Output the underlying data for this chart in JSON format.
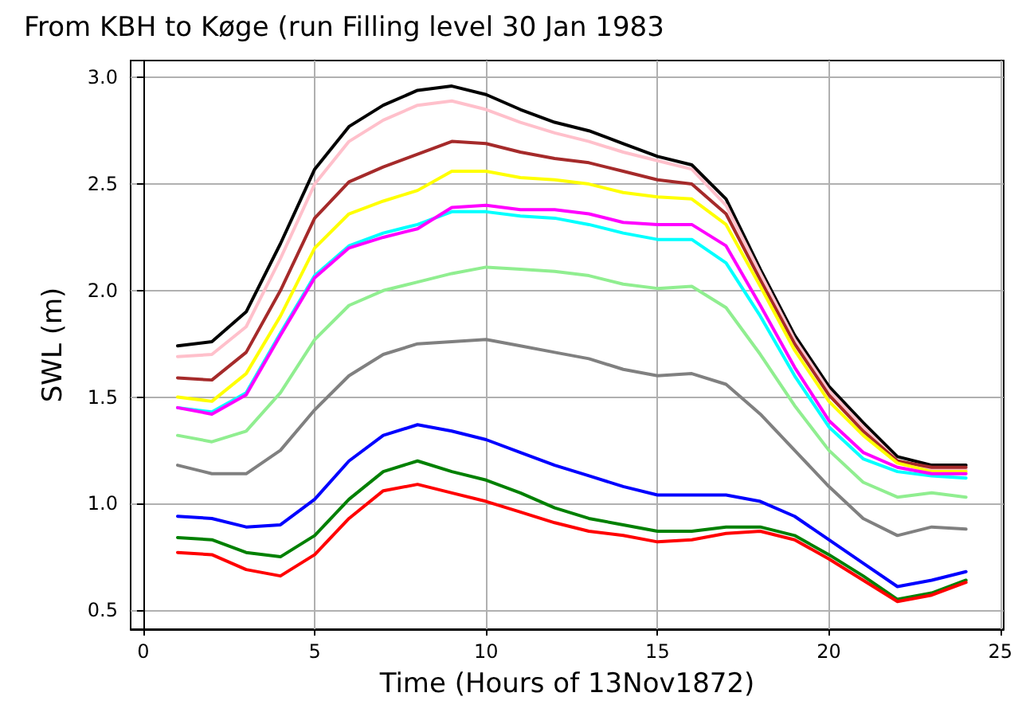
{
  "chart_data": {
    "type": "line",
    "title": "From KBH to Køge (run Filling level 30 Jan 1983",
    "xlabel": "Time (Hours of 13Nov1872)",
    "ylabel": "SWL (m)",
    "x": [
      1,
      2,
      3,
      4,
      5,
      6,
      7,
      8,
      9,
      10,
      11,
      12,
      13,
      14,
      15,
      16,
      17,
      18,
      19,
      20,
      21,
      22,
      23,
      24
    ],
    "series": [
      {
        "color": "#000000",
        "values": [
          1.74,
          1.76,
          1.9,
          2.22,
          2.57,
          2.77,
          2.87,
          2.94,
          2.96,
          2.92,
          2.85,
          2.79,
          2.75,
          2.69,
          2.63,
          2.59,
          2.43,
          2.1,
          1.79,
          1.55,
          1.38,
          1.22,
          1.18,
          1.18
        ]
      },
      {
        "color": "#ffc0cb",
        "values": [
          1.69,
          1.7,
          1.83,
          2.15,
          2.5,
          2.7,
          2.8,
          2.87,
          2.89,
          2.85,
          2.79,
          2.74,
          2.7,
          2.65,
          2.61,
          2.57,
          2.4,
          2.08,
          1.77,
          1.53,
          1.36,
          1.2,
          1.16,
          1.16
        ]
      },
      {
        "color": "#a52a2a",
        "values": [
          1.59,
          1.58,
          1.71,
          2.0,
          2.34,
          2.51,
          2.58,
          2.64,
          2.7,
          2.69,
          2.65,
          2.62,
          2.6,
          2.56,
          2.52,
          2.5,
          2.36,
          2.05,
          1.75,
          1.51,
          1.34,
          1.2,
          1.17,
          1.17
        ]
      },
      {
        "color": "#ffff00",
        "values": [
          1.5,
          1.48,
          1.61,
          1.88,
          2.2,
          2.36,
          2.42,
          2.47,
          2.56,
          2.56,
          2.53,
          2.52,
          2.5,
          2.46,
          2.44,
          2.43,
          2.31,
          2.02,
          1.72,
          1.48,
          1.32,
          1.19,
          1.15,
          1.15
        ]
      },
      {
        "color": "#00ffff",
        "values": [
          1.45,
          1.43,
          1.52,
          1.8,
          2.07,
          2.21,
          2.27,
          2.31,
          2.37,
          2.37,
          2.35,
          2.34,
          2.31,
          2.27,
          2.24,
          2.24,
          2.13,
          1.88,
          1.6,
          1.36,
          1.21,
          1.15,
          1.13,
          1.12
        ]
      },
      {
        "color": "#ff00ff",
        "values": [
          1.45,
          1.42,
          1.51,
          1.79,
          2.06,
          2.2,
          2.25,
          2.29,
          2.39,
          2.4,
          2.38,
          2.38,
          2.36,
          2.32,
          2.31,
          2.31,
          2.21,
          1.93,
          1.64,
          1.39,
          1.24,
          1.17,
          1.14,
          1.14
        ]
      },
      {
        "color": "#90ee90",
        "values": [
          1.32,
          1.29,
          1.34,
          1.52,
          1.77,
          1.93,
          2.0,
          2.04,
          2.08,
          2.11,
          2.1,
          2.09,
          2.07,
          2.03,
          2.01,
          2.02,
          1.92,
          1.7,
          1.46,
          1.25,
          1.1,
          1.03,
          1.05,
          1.03
        ]
      },
      {
        "color": "#808080",
        "values": [
          1.18,
          1.14,
          1.14,
          1.25,
          1.44,
          1.6,
          1.7,
          1.75,
          1.76,
          1.77,
          1.74,
          1.71,
          1.68,
          1.63,
          1.6,
          1.61,
          1.56,
          1.42,
          1.25,
          1.08,
          0.93,
          0.85,
          0.89,
          0.88
        ]
      },
      {
        "color": "#0000ff",
        "values": [
          0.94,
          0.93,
          0.89,
          0.9,
          1.02,
          1.2,
          1.32,
          1.37,
          1.34,
          1.3,
          1.24,
          1.18,
          1.13,
          1.08,
          1.04,
          1.04,
          1.04,
          1.01,
          0.94,
          0.83,
          0.72,
          0.61,
          0.64,
          0.68
        ]
      },
      {
        "color": "#008000",
        "values": [
          0.84,
          0.83,
          0.77,
          0.75,
          0.85,
          1.02,
          1.15,
          1.2,
          1.15,
          1.11,
          1.05,
          0.98,
          0.93,
          0.9,
          0.87,
          0.87,
          0.89,
          0.89,
          0.85,
          0.76,
          0.66,
          0.55,
          0.58,
          0.64
        ]
      },
      {
        "color": "#ff0000",
        "values": [
          0.77,
          0.76,
          0.69,
          0.66,
          0.76,
          0.93,
          1.06,
          1.09,
          1.05,
          1.01,
          0.96,
          0.91,
          0.87,
          0.85,
          0.82,
          0.83,
          0.86,
          0.87,
          0.83,
          0.74,
          0.64,
          0.54,
          0.57,
          0.63
        ]
      }
    ],
    "xlim": [
      -0.37,
      25.1
    ],
    "xticks": [
      0,
      5,
      10,
      15,
      20,
      25
    ],
    "ylim": [
      0.41,
      3.08
    ],
    "yticks": [
      {
        "value": 0.5,
        "label": "0.5"
      },
      {
        "value": 1,
        "label": "1.0"
      },
      {
        "value": 1.5,
        "label": "1.5"
      },
      {
        "value": 2,
        "label": "2.0"
      },
      {
        "value": 2.5,
        "label": "2.5"
      },
      {
        "value": 3,
        "label": "3.0"
      }
    ],
    "grid": true,
    "marker": "none",
    "line_style": "solid"
  }
}
